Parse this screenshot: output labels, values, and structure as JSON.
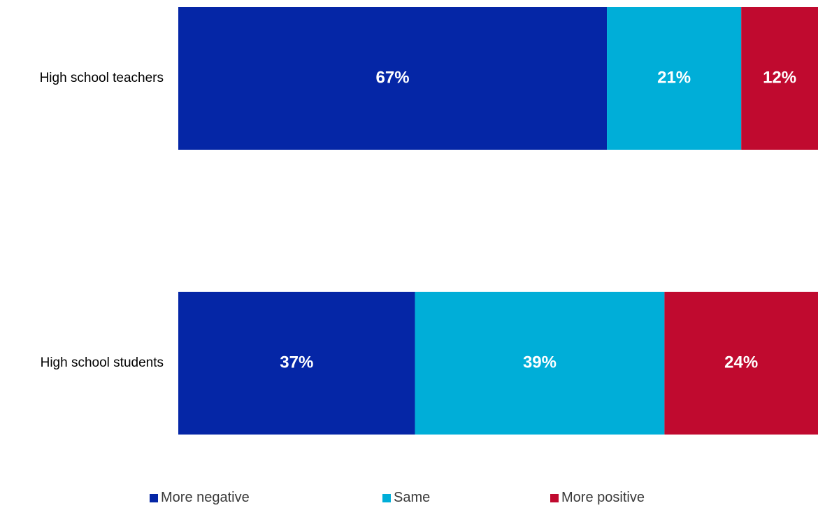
{
  "chart_data": {
    "type": "bar",
    "orientation": "horizontal",
    "stacked": true,
    "categories": [
      "High school teachers",
      "High school students"
    ],
    "series": [
      {
        "name": "More negative",
        "values": [
          67,
          37
        ],
        "labels": [
          "67%",
          "37%"
        ],
        "color": "#0526A6"
      },
      {
        "name": "Same",
        "values": [
          21,
          39
        ],
        "labels": [
          "21%",
          "39%"
        ],
        "color": "#00AED8"
      },
      {
        "name": "More positive",
        "values": [
          12,
          24
        ],
        "labels": [
          "12%",
          "24%"
        ],
        "color": "#C00A2F"
      }
    ],
    "xlim": [
      0,
      100
    ],
    "unit": "%",
    "grid": false,
    "legend_position": "bottom",
    "title": "",
    "xlabel": "",
    "ylabel": ""
  }
}
